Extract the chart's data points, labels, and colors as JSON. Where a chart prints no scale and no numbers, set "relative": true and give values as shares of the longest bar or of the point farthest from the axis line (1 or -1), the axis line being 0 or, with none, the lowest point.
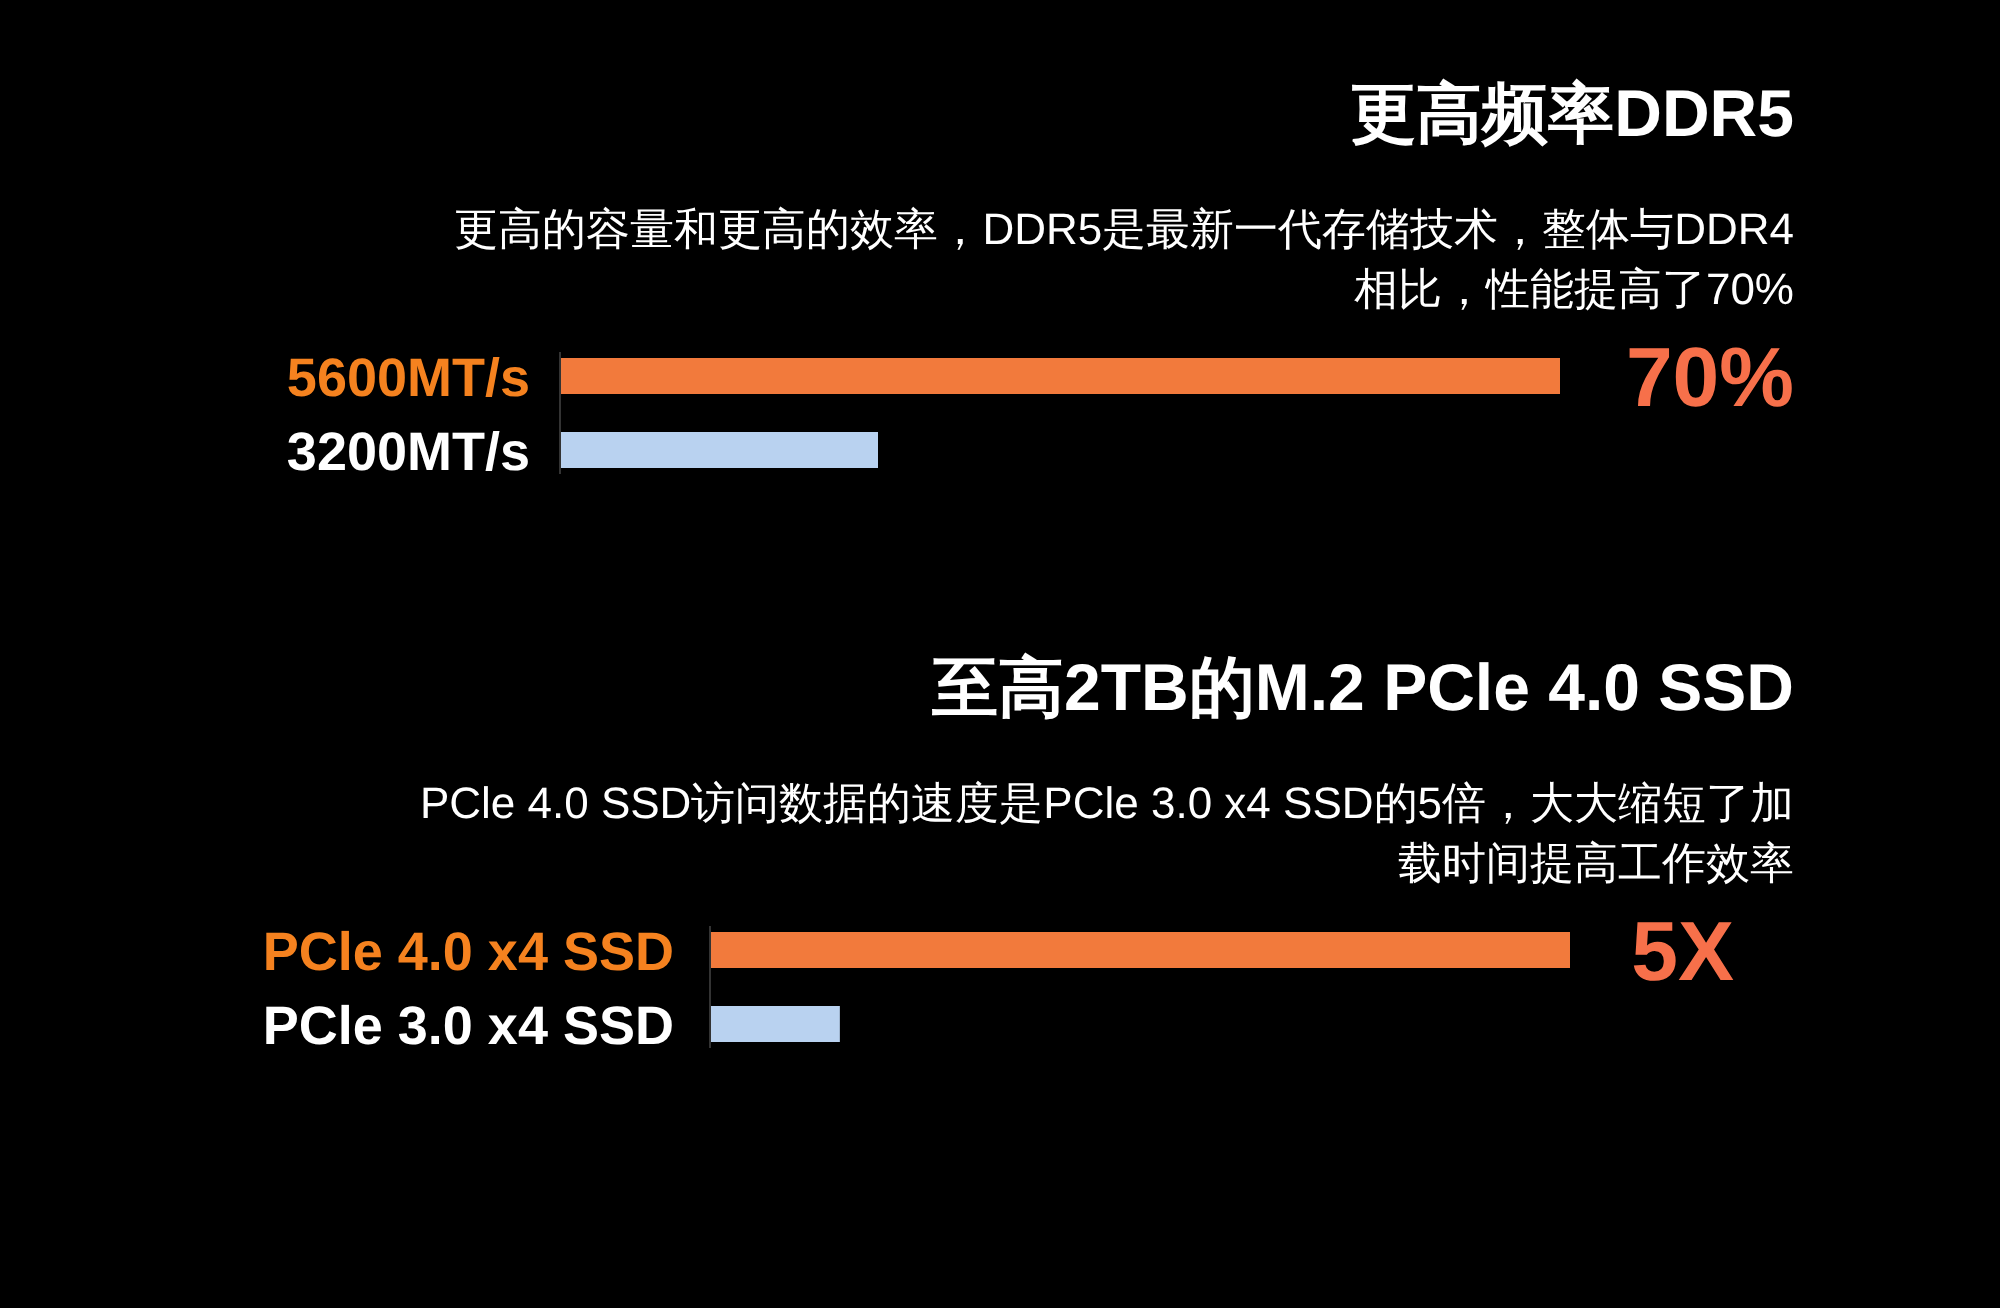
{
  "chart_data": [
    {
      "type": "bar",
      "orientation": "horizontal",
      "relative": true,
      "title": "更高频率DDR5",
      "subtitle": "更高的容量和更高的效率，DDR5是最新一代存储技术，整体与DDR4相比，性能提高了70%",
      "categories": [
        "5600MT/s",
        "3200MT/s"
      ],
      "values": [
        1,
        0.318
      ],
      "colors": [
        "#f27a3c",
        "#b9d2f0"
      ],
      "annotations": [
        "70%"
      ]
    },
    {
      "type": "bar",
      "orientation": "horizontal",
      "relative": true,
      "title": "至高2TB的M.2 PCle 4.0 SSD",
      "subtitle": "PCle 4.0 SSD访问数据的速度是PCle 3.0 x4 SSD的5倍，大大缩短了加载时间提高工作效率",
      "categories": [
        "PCle 4.0 x4 SSD",
        "PCle 3.0 x4 SSD"
      ],
      "values": [
        1,
        0.151
      ],
      "colors": [
        "#f27a3c",
        "#b9d2f0"
      ],
      "annotations": [
        "5X"
      ]
    }
  ]
}
